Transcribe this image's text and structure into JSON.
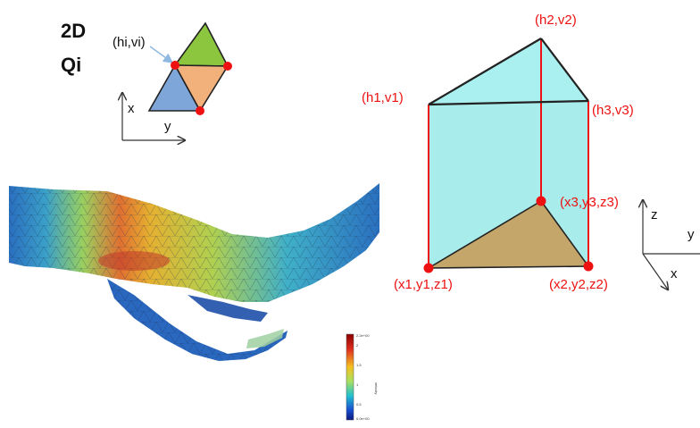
{
  "panel_2d": {
    "title_line1": "2D",
    "title_line2": "Qi",
    "node_label": "(hi,vi)",
    "axis_x_label": "x",
    "axis_y_label": "y"
  },
  "prism": {
    "top_labels": {
      "h1": "(h1,v1)",
      "h2": "(h2,v2)",
      "h3": "(h3,v3)"
    },
    "bottom_labels": {
      "p1": "(x1,y1,z1)",
      "p2": "(x2,y2,z2)",
      "p3": "(x3,y3,z3)"
    },
    "axis_z_label": "z",
    "axis_y_label": "y",
    "axis_x_label": "x"
  },
  "colorbar": {
    "tick_labels": [
      "2.2e+00",
      "2",
      "1.5",
      "1",
      "0.5",
      "0.0e+00"
    ],
    "title": "velocity"
  },
  "colors": {
    "red": "#ee1111",
    "prism_fill": "#9feaea",
    "base_fill": "#c4a66b",
    "tri_green": "#8cc63f",
    "tri_orange": "#f2b07a",
    "tri_blue": "#7fa6d8"
  }
}
